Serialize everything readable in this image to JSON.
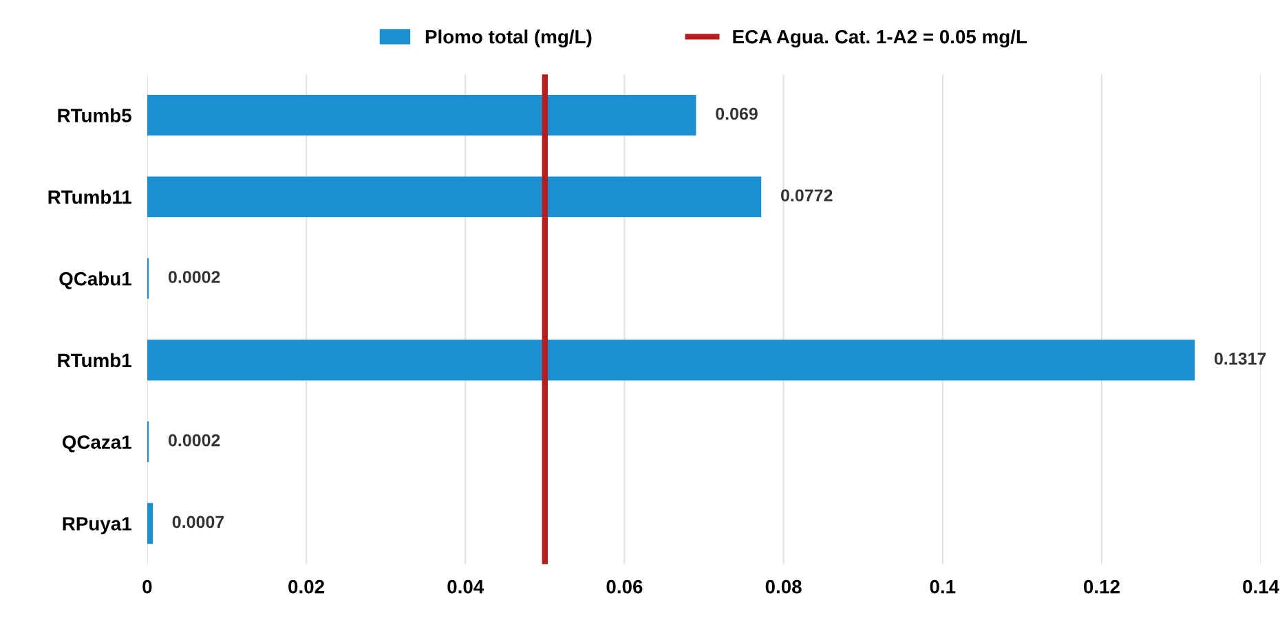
{
  "chart_data": {
    "type": "bar",
    "orientation": "horizontal",
    "categories": [
      "RTumb5",
      "RTumb11",
      "QCabu1",
      "RTumb1",
      "QCaza1",
      "RPuya1"
    ],
    "series": [
      {
        "name": "Plomo total (mg/L)",
        "color": "#1b8fd2",
        "values": [
          0.069,
          0.0772,
          0.0002,
          0.1317,
          0.0002,
          0.0007
        ]
      }
    ],
    "data_labels": true,
    "xlim": [
      0,
      0.14
    ],
    "xticks": [
      0,
      0.02,
      0.04,
      0.06,
      0.08,
      0.1,
      0.12,
      0.14
    ],
    "ref_lines": [
      {
        "axis": "x",
        "value": 0.05,
        "label": "ECA Agua. Cat. 1-A2 = 0.05 mg/L",
        "color": "#b81c1c"
      }
    ],
    "grid": "x",
    "legend": "top"
  }
}
